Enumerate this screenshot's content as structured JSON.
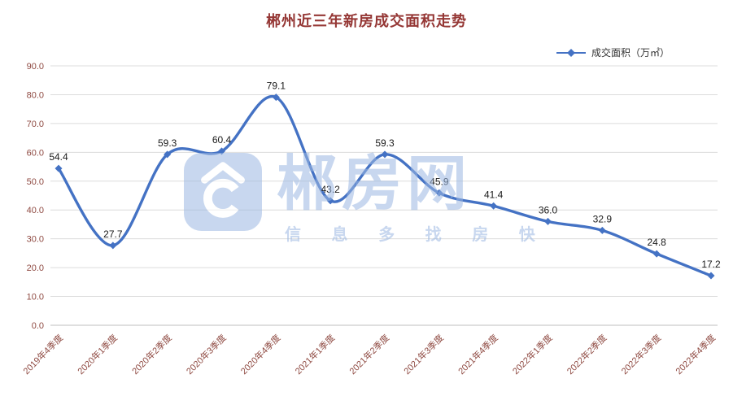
{
  "chart_data": {
    "type": "line",
    "title": "郴州近三年新房成交面积走势",
    "legend": "成交面积（万㎡）",
    "categories": [
      "2019年4季度",
      "2020年1季度",
      "2020年2季度",
      "2020年3季度",
      "2020年4季度",
      "2021年1季度",
      "2021年2季度",
      "2021年3季度",
      "2021年4季度",
      "2022年1季度",
      "2022年2季度",
      "2022年3季度",
      "2022年4季度"
    ],
    "values": [
      54.4,
      27.7,
      59.3,
      60.4,
      79.1,
      43.2,
      59.3,
      45.9,
      41.4,
      36.0,
      32.9,
      24.8,
      17.2
    ],
    "ylim": [
      0,
      90
    ],
    "ytick_step": 10,
    "grid": true,
    "legend_position": "top-right"
  },
  "watermark": {
    "brand": "郴房网",
    "tagline": "信 息 多 找 房 快"
  },
  "colors": {
    "line": "#4472C4",
    "title": "#953735",
    "axis_text": "#8F4A42",
    "point_label": "#1A1A1A",
    "gridline": "#DCDCDC",
    "axis_line": "#BFBFBF",
    "watermark": "#9CB8E2"
  }
}
